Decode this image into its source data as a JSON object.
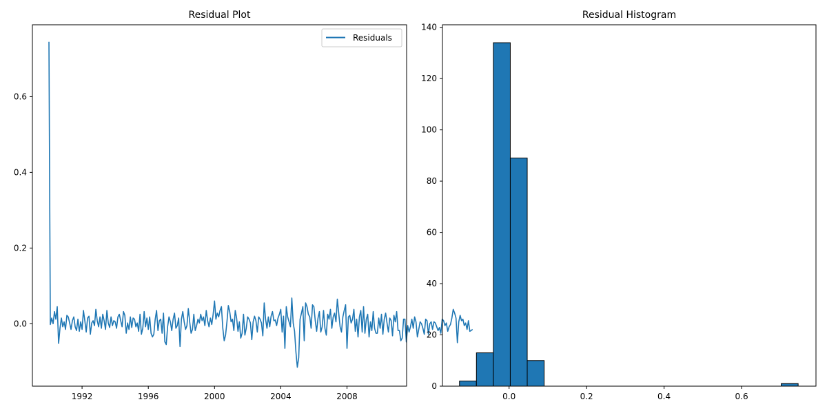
{
  "chart_data": [
    {
      "type": "line",
      "title": "Residual Plot",
      "xlabel": "",
      "ylabel": "",
      "x_range": [
        1989.0,
        2011.6
      ],
      "ylim": [
        -0.165,
        0.79
      ],
      "x_ticks": [
        1992,
        1996,
        2000,
        2004,
        2008
      ],
      "y_ticks": [
        0.0,
        0.2,
        0.4,
        0.6
      ],
      "x_tick_labels": [
        "1992",
        "1996",
        "2000",
        "2004",
        "2008"
      ],
      "y_tick_labels": [
        "0.0",
        "0.2",
        "0.4",
        "0.6"
      ],
      "legend": {
        "placement": "top-right",
        "entries": [
          "Residuals"
        ]
      },
      "grid": false,
      "series": [
        {
          "name": "Residuals",
          "color": "#1f77b4",
          "x_start": 1990.0,
          "x_step": 0.0833333,
          "values": [
            0.745,
            -0.002,
            0.015,
            0.0,
            0.032,
            0.012,
            0.045,
            -0.052,
            -0.012,
            0.015,
            -0.008,
            0.005,
            -0.015,
            0.022,
            0.018,
            0.002,
            -0.015,
            0.008,
            0.018,
            -0.008,
            -0.018,
            0.012,
            -0.02,
            0.005,
            -0.015,
            0.035,
            0.008,
            -0.022,
            0.015,
            0.02,
            -0.028,
            0.002,
            0.008,
            -0.005,
            0.038,
            0.008,
            -0.008,
            0.018,
            -0.012,
            0.025,
            0.008,
            -0.015,
            0.035,
            0.002,
            -0.01,
            0.018,
            -0.005,
            0.008,
            0.005,
            -0.012,
            0.018,
            0.025,
            0.008,
            -0.008,
            0.032,
            0.022,
            -0.025,
            0.002,
            -0.015,
            0.018,
            -0.01,
            0.015,
            0.012,
            -0.008,
            0.002,
            -0.02,
            0.025,
            -0.028,
            -0.012,
            0.032,
            -0.008,
            0.015,
            -0.015,
            0.018,
            -0.025,
            -0.035,
            -0.028,
            0.012,
            0.035,
            -0.018,
            0.008,
            0.012,
            -0.025,
            0.028,
            -0.048,
            -0.055,
            -0.008,
            0.018,
            0.005,
            -0.018,
            0.012,
            0.028,
            -0.012,
            -0.005,
            0.015,
            -0.06,
            0.012,
            0.032,
            0.005,
            -0.015,
            -0.005,
            0.04,
            0.005,
            -0.025,
            -0.015,
            0.025,
            -0.018,
            -0.005,
            0.012,
            0.002,
            0.025,
            0.008,
            0.018,
            -0.005,
            0.035,
            0.008,
            -0.008,
            0.015,
            -0.002,
            0.025,
            0.06,
            0.012,
            0.028,
            0.018,
            0.035,
            0.045,
            -0.012,
            -0.045,
            -0.03,
            0.005,
            0.048,
            0.032,
            0.005,
            0.012,
            -0.018,
            0.035,
            0.015,
            -0.02,
            0.005,
            -0.038,
            -0.025,
            0.025,
            -0.03,
            -0.012,
            0.018,
            0.012,
            0.002,
            -0.042,
            0.005,
            0.02,
            0.008,
            -0.022,
            0.018,
            0.012,
            0.002,
            -0.032,
            0.055,
            0.012,
            -0.012,
            0.018,
            -0.008,
            0.02,
            0.032,
            0.008,
            0.01,
            -0.005,
            0.015,
            0.025,
            0.038,
            -0.022,
            0.02,
            -0.065,
            0.045,
            0.018,
            0.005,
            -0.008,
            0.068,
            0.002,
            -0.02,
            -0.075,
            -0.115,
            -0.09,
            0.012,
            0.028,
            0.045,
            -0.045,
            0.055,
            0.045,
            0.025,
            0.018,
            -0.012,
            0.05,
            0.045,
            0.008,
            -0.02,
            0.015,
            0.032,
            -0.022,
            -0.008,
            0.035,
            -0.012,
            -0.03,
            0.025,
            0.012,
            0.038,
            -0.012,
            0.018,
            0.028,
            0.005,
            0.065,
            0.028,
            -0.008,
            -0.022,
            0.018,
            0.035,
            0.05,
            -0.065,
            0.018,
            0.022,
            0.002,
            0.012,
            0.038,
            -0.02,
            0.012,
            -0.035,
            0.018,
            0.035,
            -0.022,
            0.045,
            -0.025,
            0.012,
            0.025,
            -0.035,
            0.005,
            -0.018,
            0.032,
            -0.012,
            -0.025,
            -0.025,
            0.015,
            -0.012,
            0.025,
            -0.028,
            0.012,
            0.028,
            0.002,
            -0.022,
            0.015,
            0.008,
            -0.032,
            0.022,
            0.005,
            0.032,
            -0.018,
            -0.018,
            -0.045,
            -0.038,
            0.012,
            0.012,
            -0.048,
            -0.005,
            -0.022,
            -0.008,
            0.012,
            -0.012,
            0.018,
            0.005,
            -0.035,
            -0.015,
            0.005,
            0.0,
            -0.012,
            -0.028,
            0.012,
            0.008,
            -0.028,
            0.0,
            0.005,
            -0.015,
            0.005,
            0.002,
            -0.008,
            -0.018,
            -0.01,
            -0.025,
            0.012,
            0.008,
            -0.005,
            0.002,
            -0.02,
            -0.008,
            -0.002,
            0.015,
            0.038,
            0.028,
            0.015,
            -0.05,
            0.005,
            0.022,
            0.008,
            0.012,
            -0.005,
            0.002,
            -0.015,
            0.008,
            -0.02,
            -0.018,
            -0.015
          ]
        }
      ]
    },
    {
      "type": "bar",
      "subtype": "histogram",
      "title": "Residual Histogram",
      "xlabel": "",
      "ylabel": "",
      "x_range": [
        -0.172,
        0.792
      ],
      "ylim": [
        0,
        141
      ],
      "x_ticks": [
        0.0,
        0.2,
        0.4,
        0.6
      ],
      "y_ticks": [
        0,
        20,
        40,
        60,
        80,
        100,
        120,
        140
      ],
      "x_tick_labels": [
        "0.0",
        "0.2",
        "0.4",
        "0.6"
      ],
      "y_tick_labels": [
        "0",
        "20",
        "40",
        "60",
        "80",
        "100",
        "120",
        "140"
      ],
      "bar_color": "#1f77b4",
      "edge_color": "#000000",
      "bin_start": -0.128,
      "bin_width": 0.0437,
      "counts": [
        2,
        13,
        134,
        89,
        10,
        0,
        0,
        0,
        0,
        0,
        0,
        0,
        0,
        0,
        0,
        0,
        0,
        0,
        0,
        1
      ]
    }
  ]
}
